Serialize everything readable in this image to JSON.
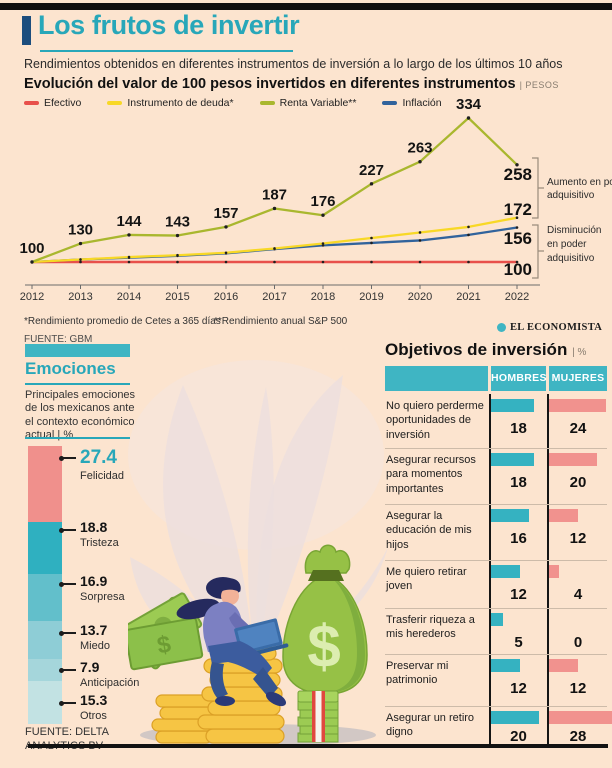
{
  "page": {
    "title": "Los frutos de invertir",
    "subtitle": "Rendimientos obtenidos en diferentes instrumentos de inversión a lo largo de los últimos 10 años",
    "brand": "EL ECONOMISTA"
  },
  "main_chart": {
    "title": "Evolución del valor de 100 pesos invertidos en diferentes instrumentos",
    "unit_label": "| PESOS",
    "footnote1": "*Rendimiento promedio de Cetes a 365 días",
    "footnote2": "**Rendimiento anual S&P 500",
    "source": "FUENTE: GBM",
    "annotation_up": "Aumento en poder\nadquisitivo",
    "annotation_down": "Disminución\nen poder\nadquisitivo"
  },
  "chart_data": [
    {
      "id": "evolution",
      "type": "line",
      "title": "Evolución del valor de 100 pesos invertidos en diferentes instrumentos",
      "unit": "PESOS",
      "x": [
        "2012",
        "2013",
        "2014",
        "2015",
        "2016",
        "2017",
        "2018",
        "2019",
        "2020",
        "2021",
        "2022"
      ],
      "series": [
        {
          "name": "Efectivo",
          "color": "#e8504b",
          "values": [
            100,
            100,
            100,
            100,
            100,
            100,
            100,
            100,
            100,
            100,
            100
          ]
        },
        {
          "name": "Instrumento de deuda*",
          "color": "#f8d826",
          "values": [
            100,
            104,
            108,
            111,
            115,
            122,
            130,
            139,
            148,
            157,
            172
          ]
        },
        {
          "name": "Renta Variable**",
          "color": "#a9b72e",
          "values": [
            100,
            130,
            144,
            143,
            157,
            187,
            176,
            227,
            263,
            334,
            258
          ],
          "point_labels": true
        },
        {
          "name": "Inflación",
          "color": "#31639c",
          "values": [
            100,
            104,
            107,
            110,
            114,
            121,
            127,
            131,
            135,
            144,
            156
          ]
        }
      ],
      "end_labels": [
        258,
        172,
        156,
        100
      ],
      "ylim": [
        95,
        345
      ],
      "legend_position": "top",
      "grid": false
    },
    {
      "id": "emociones",
      "type": "bar",
      "title": "Emociones",
      "subtitle": "Principales emociones de los mexicanos ante el contexto económico actual | %",
      "unit": "%",
      "categories": [
        "Felicidad",
        "Tristeza",
        "Sorpresa",
        "Miedo",
        "Anticipación",
        "Otros"
      ],
      "values": [
        27.4,
        18.8,
        16.9,
        13.7,
        7.9,
        15.3
      ],
      "colors": [
        "#f0908c",
        "#2fb0c0",
        "#62bfcb",
        "#8ecdd6",
        "#a5d6db",
        "#c2e2e3"
      ],
      "source": "FUENTE: DELTA ANALYTICS BV"
    },
    {
      "id": "objetivos",
      "type": "bar",
      "title": "Objetivos de inversión",
      "unit_label": "| %",
      "unit": "%",
      "categories": [
        "No quiero perderme oportunidades de inversión",
        "Asegurar recursos para momentos importantes",
        "Asegurar la educación de mis hijos",
        "Me quiero retirar joven",
        "Trasferir riqueza a mis herederos",
        "Preservar mi patrimonio",
        "Asegurar un retiro digno"
      ],
      "series": [
        {
          "name": "HOMBRES",
          "color": "#35b2c1",
          "values": [
            18,
            18,
            16,
            12,
            5,
            12,
            20
          ]
        },
        {
          "name": "MUJERES",
          "color": "#f1928e",
          "values": [
            24,
            20,
            12,
            4,
            0,
            12,
            28
          ]
        }
      ]
    }
  ],
  "colors": {
    "background": "#fce4cf",
    "accent_teal": "#28a7b9",
    "navy": "#1c4d7d",
    "table_header": "#3fb5c3"
  }
}
